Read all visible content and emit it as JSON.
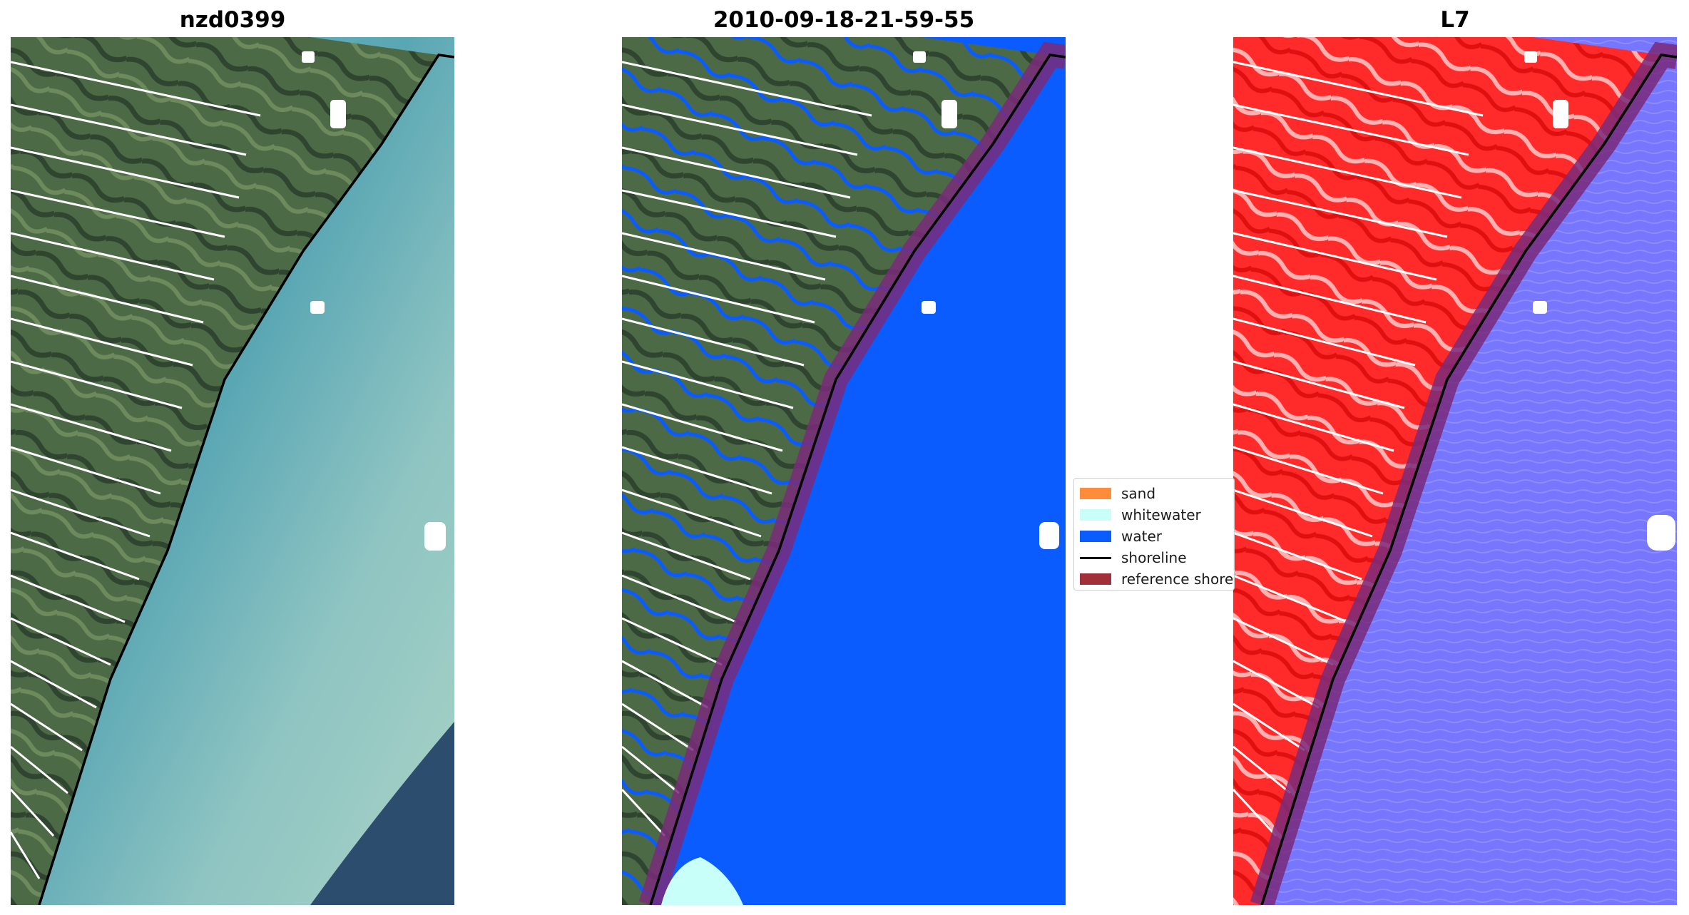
{
  "panels": [
    {
      "title": "nzd0399",
      "style": "rgb"
    },
    {
      "title": "2010-09-18-21-59-55",
      "style": "classified"
    },
    {
      "title": "L7",
      "style": "index"
    }
  ],
  "legend": {
    "items": [
      {
        "label": "sand",
        "color": "#ff8c3b"
      },
      {
        "label": "whitewater",
        "color": "#c8fff8"
      },
      {
        "label": "water",
        "color": "#0a5cff"
      },
      {
        "label": "shoreline",
        "color": "#000000",
        "kind": "line"
      },
      {
        "label": "reference shore",
        "color": "#a0303a"
      }
    ]
  },
  "colors": {
    "land_rgb": "#4e6a48",
    "sea_rgb": "#6ab0b8",
    "deep_sea_rgb": "#284a6a",
    "water_class": "#0a5cff",
    "land_index": "#ff2020",
    "sea_index": "#7a7aff",
    "reference_buffer": "#7a2a7a"
  }
}
